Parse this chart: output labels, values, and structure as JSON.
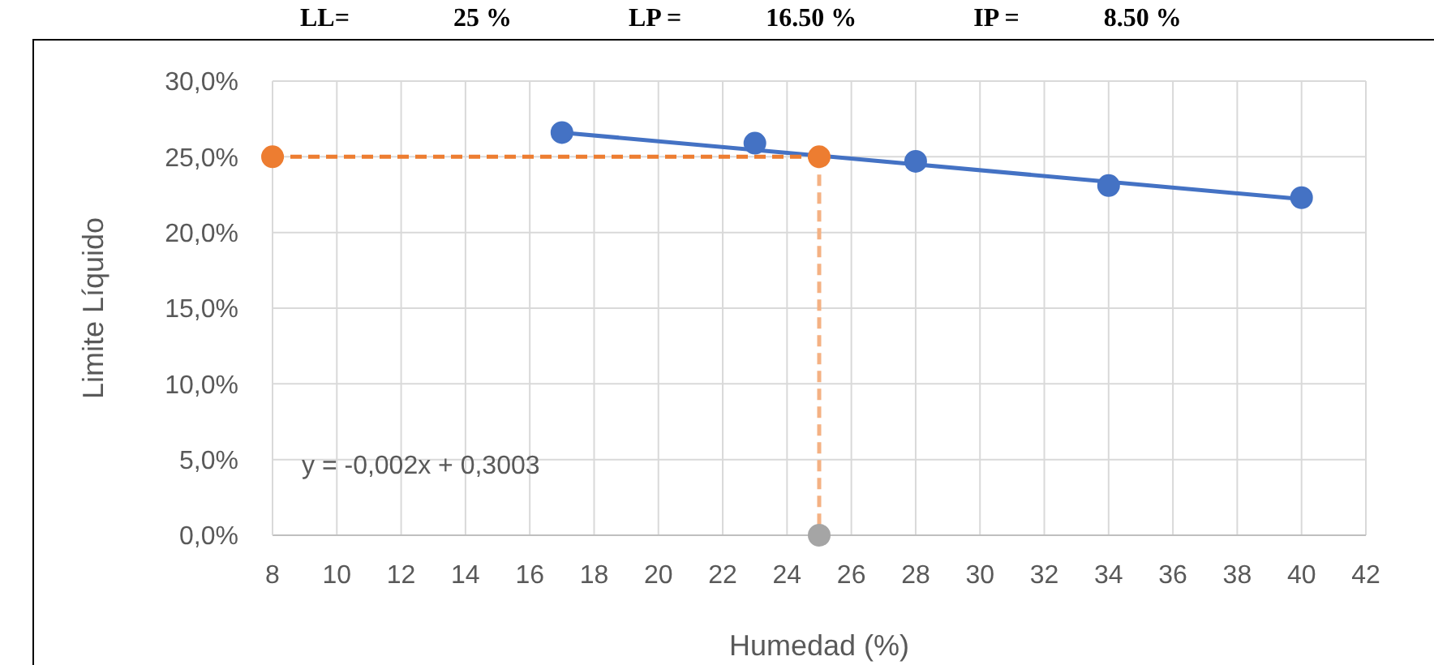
{
  "chart_data": {
    "type": "scatter",
    "title": "LL=                25 %                  LP =             16.50 %                  IP =             8.50 %",
    "xlabel": "Humedad (%)",
    "ylabel": "Limite Líquido",
    "annotations": [
      "y = -0,002x + 0,3003"
    ],
    "xlim": [
      8,
      42
    ],
    "xticks": [
      8,
      10,
      12,
      14,
      16,
      18,
      20,
      22,
      24,
      26,
      28,
      30,
      32,
      34,
      36,
      38,
      40,
      42
    ],
    "ylim": [
      0,
      30
    ],
    "yticks": [
      {
        "value": 0,
        "label": "0,0%"
      },
      {
        "value": 5,
        "label": "5,0%"
      },
      {
        "value": 10,
        "label": "10,0%"
      },
      {
        "value": 15,
        "label": "15,0%"
      },
      {
        "value": 20,
        "label": "20,0%"
      },
      {
        "value": 25,
        "label": "25,0%"
      },
      {
        "value": 30,
        "label": "30,0%"
      }
    ],
    "grid": true,
    "series": [
      {
        "type": "line",
        "color": "#4472c4",
        "x": [
          17,
          40
        ],
        "values": [
          26.6,
          22.2
        ],
        "marker": "none",
        "line_style": "solid"
      },
      {
        "type": "line",
        "color": "#f4b183",
        "x": [
          25,
          25
        ],
        "values": [
          25,
          0
        ],
        "marker": "none",
        "line_style": "dashed"
      },
      {
        "type": "line",
        "color": "#ed7d31",
        "x": [
          8,
          25
        ],
        "values": [
          25,
          25
        ],
        "marker": "circle",
        "line_style": "dashed"
      },
      {
        "type": "scatter",
        "color": "#4472c4",
        "x": [
          17,
          23,
          28,
          34,
          40
        ],
        "values": [
          26.6,
          25.9,
          24.7,
          23.1,
          22.3
        ],
        "marker": "circle"
      },
      {
        "type": "scatter",
        "color": "#a5a5a5",
        "x": [
          25
        ],
        "values": [
          0
        ],
        "marker": "circle"
      }
    ]
  }
}
